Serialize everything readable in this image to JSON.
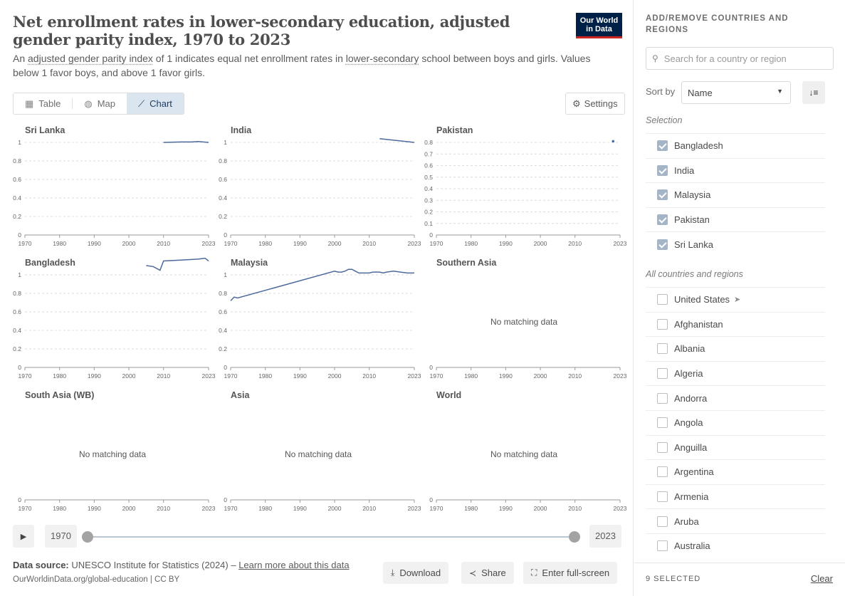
{
  "header": {
    "title": "Net enrollment rates in lower-secondary education, adjusted gender parity index, 1970 to 2023",
    "subtitle_parts": [
      {
        "text": "An ",
        "u": false
      },
      {
        "text": "adjusted gender parity index",
        "u": true
      },
      {
        "text": " of 1 indicates equal net enrollment rates in ",
        "u": false
      },
      {
        "text": "lower-secondary",
        "u": true
      },
      {
        "text": " school between boys and girls. Values below 1 favor boys, and above 1 favor girls.",
        "u": false
      }
    ],
    "logo_line1": "Our World",
    "logo_line2": "in Data"
  },
  "tabs": [
    {
      "label": "Table",
      "icon": "table-icon",
      "glyph": "▦",
      "active": false
    },
    {
      "label": "Map",
      "icon": "globe-icon",
      "glyph": "◍",
      "active": false
    },
    {
      "label": "Chart",
      "icon": "line-chart-icon",
      "glyph": "⟋",
      "active": true
    }
  ],
  "settings_label": "Settings",
  "timeline": {
    "start": "1970",
    "end": "2023"
  },
  "footer": {
    "source_label": "Data source:",
    "source_text": "UNESCO Institute for Statistics (2024) – ",
    "learn_more": "Learn more about this data",
    "credit": "OurWorldinData.org/global-education | CC BY",
    "download": "Download",
    "share": "Share",
    "fullscreen": "Enter full-screen"
  },
  "sidebar": {
    "heading": "ADD/REMOVE COUNTRIES AND REGIONS",
    "search_placeholder": "Search for a country or region",
    "sort_label": "Sort by",
    "sort_value": "Name",
    "selection_label": "Selection",
    "selected": [
      "Bangladesh",
      "India",
      "Malaysia",
      "Pakistan",
      "Sri Lanka"
    ],
    "all_label": "All countries and regions",
    "all": [
      "United States",
      "Afghanistan",
      "Albania",
      "Algeria",
      "Andorra",
      "Angola",
      "Anguilla",
      "Argentina",
      "Armenia",
      "Aruba",
      "Australia"
    ],
    "selected_count": "9 SELECTED",
    "clear": "Clear"
  },
  "chart_data": {
    "type": "line",
    "no_data_text": "No matching data",
    "x_ticks": [
      "1970",
      "1980",
      "1990",
      "2000",
      "2010",
      "2023"
    ],
    "series_color": "#4c6a9c",
    "panels": [
      {
        "name": "Sri Lanka",
        "y_ticks": [
          "0",
          "0.2",
          "0.4",
          "0.6",
          "0.8",
          "1"
        ],
        "ymax": 1.0,
        "points": [
          [
            2010,
            1.0
          ],
          [
            2015,
            1.005
          ],
          [
            2018,
            1.005
          ],
          [
            2020,
            1.01
          ],
          [
            2023,
            1.0
          ]
        ]
      },
      {
        "name": "India",
        "y_ticks": [
          "0",
          "0.2",
          "0.4",
          "0.6",
          "0.8",
          "1"
        ],
        "ymax": 1.0,
        "points": [
          [
            2013,
            1.04
          ],
          [
            2018,
            1.02
          ],
          [
            2023,
            1.0
          ]
        ]
      },
      {
        "name": "Pakistan",
        "y_ticks": [
          "0",
          "0.1",
          "0.2",
          "0.3",
          "0.4",
          "0.5",
          "0.6",
          "0.7",
          "0.8"
        ],
        "ymax": 0.8,
        "points": [
          [
            2021,
            0.81
          ]
        ]
      },
      {
        "name": "Bangladesh",
        "y_ticks": [
          "0",
          "0.2",
          "0.4",
          "0.6",
          "0.8",
          "1"
        ],
        "ymax": 1.0,
        "points": [
          [
            2005,
            1.1
          ],
          [
            2007,
            1.09
          ],
          [
            2009,
            1.05
          ],
          [
            2010,
            1.15
          ],
          [
            2015,
            1.16
          ],
          [
            2020,
            1.17
          ],
          [
            2022,
            1.18
          ],
          [
            2023,
            1.15
          ]
        ]
      },
      {
        "name": "Malaysia",
        "y_ticks": [
          "0",
          "0.2",
          "0.4",
          "0.6",
          "0.8",
          "1"
        ],
        "ymax": 1.0,
        "points": [
          [
            1970,
            0.72
          ],
          [
            1971,
            0.76
          ],
          [
            1972,
            0.75
          ],
          [
            2000,
            1.04
          ],
          [
            2001,
            1.03
          ],
          [
            2002,
            1.03
          ],
          [
            2003,
            1.04
          ],
          [
            2004,
            1.06
          ],
          [
            2005,
            1.06
          ],
          [
            2006,
            1.04
          ],
          [
            2007,
            1.02
          ],
          [
            2008,
            1.02
          ],
          [
            2010,
            1.02
          ],
          [
            2011,
            1.03
          ],
          [
            2013,
            1.03
          ],
          [
            2014,
            1.02
          ],
          [
            2015,
            1.03
          ],
          [
            2017,
            1.04
          ],
          [
            2019,
            1.03
          ],
          [
            2021,
            1.02
          ],
          [
            2023,
            1.02
          ]
        ]
      },
      {
        "name": "Southern Asia",
        "y_ticks": [
          "0"
        ],
        "ymax": 1.0,
        "points": []
      },
      {
        "name": "South Asia (WB)",
        "y_ticks": [
          "0"
        ],
        "ymax": 1.0,
        "points": []
      },
      {
        "name": "Asia",
        "y_ticks": [
          "0"
        ],
        "ymax": 1.0,
        "points": []
      },
      {
        "name": "World",
        "y_ticks": [
          "0"
        ],
        "ymax": 1.0,
        "points": []
      }
    ]
  }
}
